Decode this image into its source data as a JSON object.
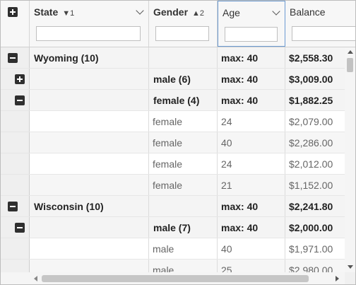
{
  "header": {
    "columns": [
      {
        "title": "State",
        "sort": "▼1",
        "has_menu": true
      },
      {
        "title": "Gender",
        "sort": "▲2",
        "has_menu": true
      },
      {
        "title": "Age",
        "sort": "",
        "has_menu": true
      },
      {
        "title": "Balance",
        "sort": "",
        "has_menu": false
      }
    ],
    "filters": [
      "",
      "",
      "",
      ""
    ]
  },
  "rows": [
    {
      "type": "group0",
      "expander": "minus",
      "state": "Wyoming (10)",
      "gender": "",
      "age": "max: 40",
      "balance": "$2,558.30"
    },
    {
      "type": "group1",
      "expander": "plus",
      "state": "",
      "gender": "male (6)",
      "age": "max: 40",
      "balance": "$3,009.00"
    },
    {
      "type": "group1",
      "expander": "minus",
      "state": "",
      "gender": "female (4)",
      "age": "max: 40",
      "balance": "$1,882.25"
    },
    {
      "type": "leaf",
      "expander": "",
      "state": "",
      "gender": "female",
      "age": "24",
      "balance": "$2,079.00"
    },
    {
      "type": "leaf",
      "expander": "",
      "state": "",
      "gender": "female",
      "age": "40",
      "balance": "$2,286.00"
    },
    {
      "type": "leaf",
      "expander": "",
      "state": "",
      "gender": "female",
      "age": "24",
      "balance": "$2,012.00"
    },
    {
      "type": "leaf",
      "expander": "",
      "state": "",
      "gender": "female",
      "age": "21",
      "balance": "$1,152.00"
    },
    {
      "type": "group0",
      "expander": "minus",
      "state": "Wisconsin (10)",
      "gender": "",
      "age": "max: 40",
      "balance": "$2,241.80"
    },
    {
      "type": "group1",
      "expander": "minus",
      "state": "",
      "gender": "male (7)",
      "age": "max: 40",
      "balance": "$2,000.00"
    },
    {
      "type": "leaf",
      "expander": "",
      "state": "",
      "gender": "male",
      "age": "40",
      "balance": "$1,971.00"
    },
    {
      "type": "leaf",
      "expander": "",
      "state": "",
      "gender": "male",
      "age": "25",
      "balance": "$2,980.00"
    }
  ],
  "colors": {
    "header_bg": "#f7f7f7",
    "group_bg": "#f4f4f4",
    "focus_border": "#6b9bd2"
  }
}
